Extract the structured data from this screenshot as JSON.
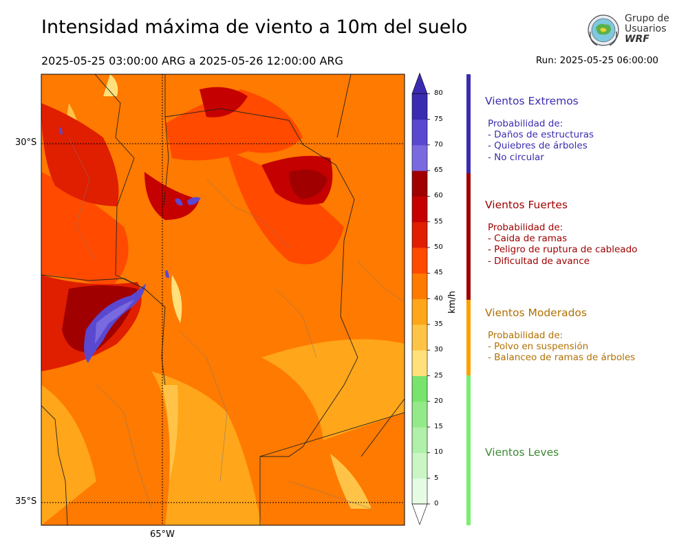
{
  "header": {
    "title": "Intensidad máxima de viento a 10m del suelo",
    "period": "2025-05-25 03:00:00 ARG  a  2025-05-26 12:00:00 ARG",
    "run": "Run: 2025-05-25 06:00:00",
    "logo_lines": [
      "Grupo de",
      "Usuarios",
      "WRF"
    ]
  },
  "map": {
    "lat_labels": [
      "30°S",
      "35°S"
    ],
    "lon_labels": [
      "65°W"
    ]
  },
  "colorbar": {
    "unit": "km/h",
    "ticks": [
      "0",
      "5",
      "10",
      "15",
      "20",
      "25",
      "30",
      "35",
      "40",
      "45",
      "50",
      "55",
      "60",
      "65",
      "70",
      "75",
      "80"
    ],
    "colors": [
      "#e6fbe4",
      "#cbf5c5",
      "#b0f0a8",
      "#94ea8a",
      "#78e46d",
      "#ffe07a",
      "#ffc447",
      "#ffa61a",
      "#ff7a00",
      "#ff4a00",
      "#e01e00",
      "#c50000",
      "#a00000",
      "#7a6ae0",
      "#5a48d0",
      "#3a2cb0"
    ]
  },
  "categories": [
    {
      "title": "Vientos Extremos",
      "color": "#3a2cb0",
      "lines": [
        "Probabilidad de:",
        "- Daños de estructuras",
        "- Quiebres de árboles",
        "- No circular"
      ]
    },
    {
      "title": "Vientos Fuertes",
      "color": "#a00000",
      "lines": [
        "Probabilidad de:",
        "- Caida de ramas",
        "- Peligro de ruptura de cableado",
        "- Dificultad de avance"
      ]
    },
    {
      "title": "Vientos Moderados",
      "color": "#b07000",
      "lines": [
        "Probabilidad de:",
        "- Polvo en suspensión",
        "- Balanceo de ramas de árboles"
      ]
    },
    {
      "title": "Vientos Leves",
      "color": "#3a8a30",
      "lines": []
    }
  ]
}
